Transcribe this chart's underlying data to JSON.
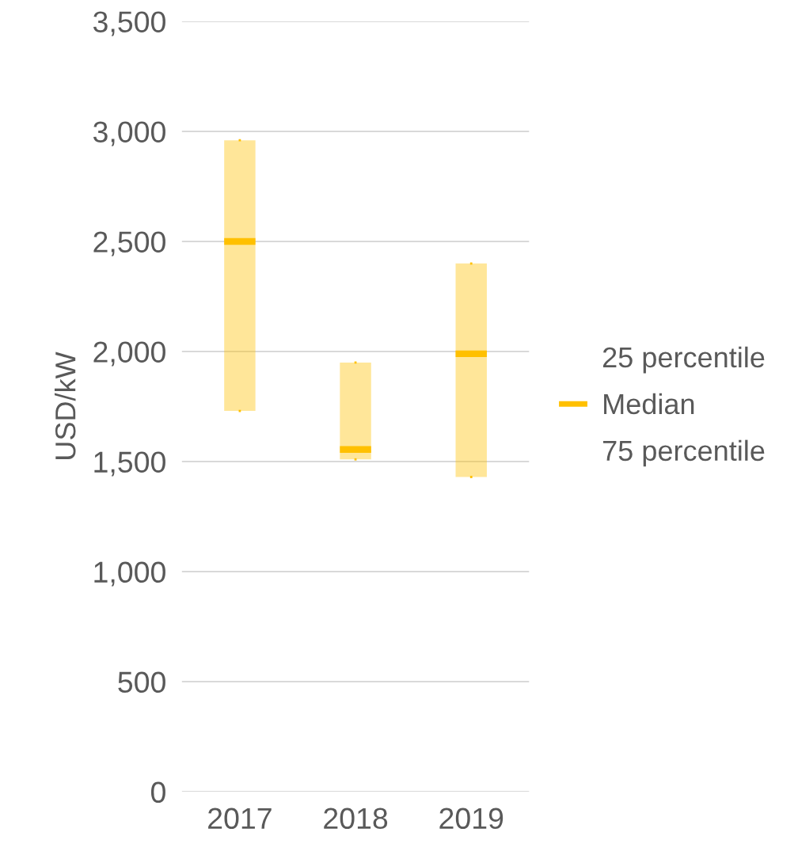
{
  "chart_data": {
    "type": "box",
    "ylabel": "USD/kW",
    "categories": [
      "2017",
      "2018",
      "2019"
    ],
    "series": [
      {
        "name": "Median",
        "color": "#ffc000",
        "boxes": [
          {
            "low": 1730,
            "q1": 1730,
            "median": 2500,
            "q3": 2960,
            "high": 2960
          },
          {
            "low": 1510,
            "q1": 1510,
            "median": 1555,
            "q3": 1950,
            "high": 1950
          },
          {
            "low": 1430,
            "q1": 1430,
            "median": 1990,
            "q3": 2400,
            "high": 2400
          }
        ]
      }
    ],
    "annotations": [
      "25 percentile",
      "75 percentile"
    ],
    "ylim": [
      0,
      3500
    ],
    "yticks": [
      {
        "value": 0,
        "label": "0"
      },
      {
        "value": 500,
        "label": "500"
      },
      {
        "value": 1000,
        "label": "1,000"
      },
      {
        "value": 1500,
        "label": "1,500"
      },
      {
        "value": 2000,
        "label": "2,000"
      },
      {
        "value": 2500,
        "label": "2,500"
      },
      {
        "value": 3000,
        "label": "3,000"
      },
      {
        "value": 3500,
        "label": "3,500"
      }
    ],
    "grid": "y",
    "legend": "right"
  }
}
